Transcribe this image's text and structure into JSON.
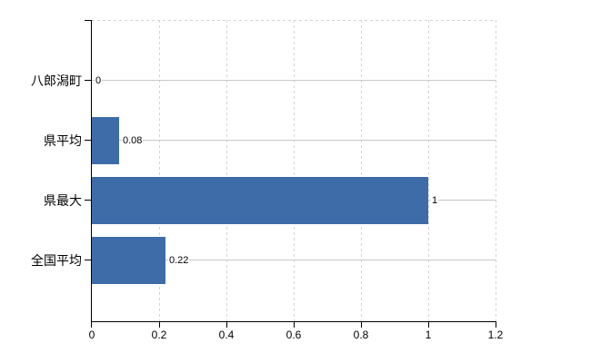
{
  "chart_data": {
    "type": "bar",
    "orientation": "horizontal",
    "title": "",
    "categories": [
      "八郎潟町",
      "県平均",
      "県最大",
      "全国平均"
    ],
    "values": [
      0,
      0.08,
      1,
      0.22
    ],
    "value_labels": [
      "0",
      "0.08",
      "1",
      "0.22"
    ],
    "x_ticks": [
      "0",
      "0.2",
      "0.4",
      "0.6",
      "0.8",
      "1",
      "1.2"
    ],
    "xlim": [
      0,
      1.2
    ],
    "grid": true,
    "legend": false,
    "bar_color": "#3e6ca8",
    "hgrid_color": "#c8c8c8",
    "vgrid_color": "#d4d4d4",
    "axis_color": "#000000"
  }
}
